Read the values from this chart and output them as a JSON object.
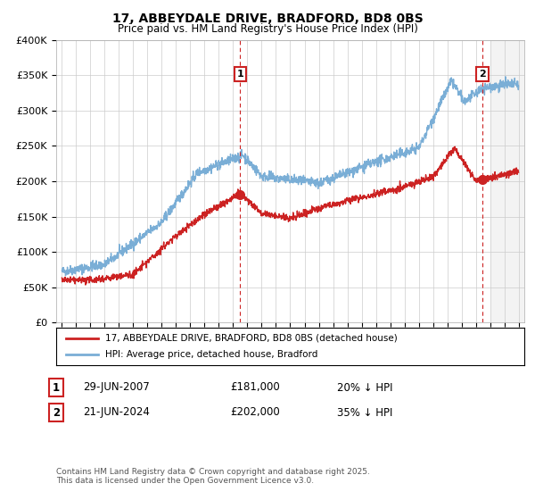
{
  "title": "17, ABBEYDALE DRIVE, BRADFORD, BD8 0BS",
  "subtitle": "Price paid vs. HM Land Registry's House Price Index (HPI)",
  "ylabel_ticks": [
    "£0",
    "£50K",
    "£100K",
    "£150K",
    "£200K",
    "£250K",
    "£300K",
    "£350K",
    "£400K"
  ],
  "ylim": [
    0,
    400000
  ],
  "xlim_start": 1994.6,
  "xlim_end": 2027.4,
  "legend_line1": "17, ABBEYDALE DRIVE, BRADFORD, BD8 0BS (detached house)",
  "legend_line2": "HPI: Average price, detached house, Bradford",
  "marker1_year": 2007.5,
  "marker1_price": 181000,
  "marker1_label": "1",
  "marker1_date": "29-JUN-2007",
  "marker1_price_str": "£181,000",
  "marker1_pct": "20% ↓ HPI",
  "marker2_year": 2024.47,
  "marker2_price": 202000,
  "marker2_label": "2",
  "marker2_date": "21-JUN-2024",
  "marker2_price_str": "£202,000",
  "marker2_pct": "35% ↓ HPI",
  "red_color": "#cc2222",
  "blue_color": "#7aaed6",
  "shaded_color": "#e8e8e8",
  "footer_text": "Contains HM Land Registry data © Crown copyright and database right 2025.\nThis data is licensed under the Open Government Licence v3.0.",
  "background_color": "#ffffff",
  "grid_color": "#cccccc"
}
